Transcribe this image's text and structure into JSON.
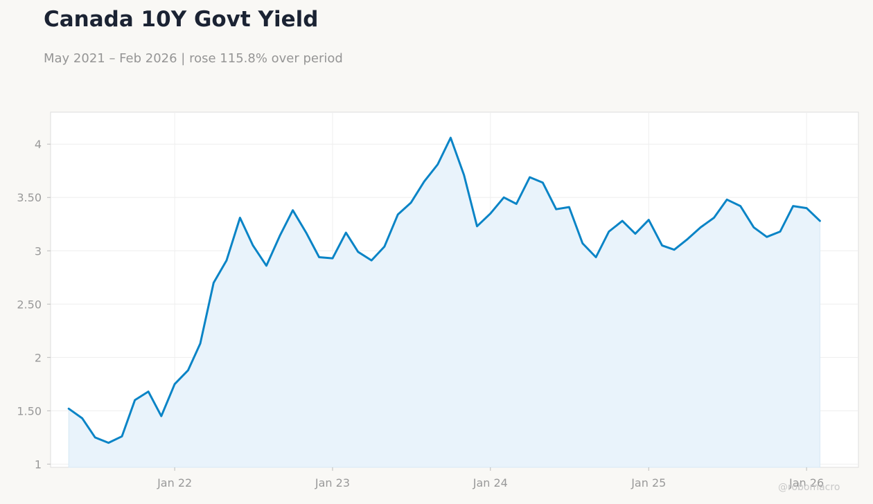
{
  "header": {
    "title": "Canada 10Y Govt Yield",
    "subtitle": "May 2021 – Feb 2026 | rose 115.8% over period"
  },
  "watermark": "@robomacro",
  "colors": {
    "background": "#f9f8f5",
    "plot_background": "#ffffff",
    "line": "#0a84c6",
    "fill": "#e9f3fb",
    "grid": "#eeeeee",
    "tick_label": "#999999"
  },
  "chart_data": {
    "type": "area",
    "title": "Canada 10Y Govt Yield",
    "subtitle": "May 2021 – Feb 2026 | rose 115.8% over period",
    "xlabel": "",
    "ylabel": "",
    "grid": true,
    "legend": "none",
    "x_range": [
      "2021-03-20",
      "2026-05-01"
    ],
    "ylim": [
      0.97,
      4.3
    ],
    "y_ticks": [
      1,
      1.5,
      2,
      2.5,
      3,
      3.5,
      4
    ],
    "y_tick_labels": [
      "1",
      "1.50",
      "2",
      "2.50",
      "3",
      "3.50",
      "4"
    ],
    "x_ticks": [
      "2022-01-01",
      "2023-01-01",
      "2024-01-01",
      "2025-01-01",
      "2026-01-01"
    ],
    "x_tick_labels": [
      "Jan 22",
      "Jan 23",
      "Jan 24",
      "Jan 25",
      "Jan 26"
    ],
    "series": [
      {
        "x": [
          "2021-05-01",
          "2021-06-01",
          "2021-07-01",
          "2021-08-01",
          "2021-09-01",
          "2021-10-01",
          "2021-11-01",
          "2021-12-01",
          "2022-01-01",
          "2022-02-01",
          "2022-03-01",
          "2022-04-01",
          "2022-05-01",
          "2022-06-01",
          "2022-07-01",
          "2022-08-01",
          "2022-09-01",
          "2022-10-01",
          "2022-11-01",
          "2022-12-01",
          "2023-01-01",
          "2023-02-01",
          "2023-03-01",
          "2023-04-01",
          "2023-05-01",
          "2023-06-01",
          "2023-07-01",
          "2023-08-01",
          "2023-09-01",
          "2023-10-01",
          "2023-11-01",
          "2023-12-01",
          "2024-01-01",
          "2024-02-01",
          "2024-03-01",
          "2024-04-01",
          "2024-05-01",
          "2024-06-01",
          "2024-07-01",
          "2024-08-01",
          "2024-09-01",
          "2024-10-01",
          "2024-11-01",
          "2024-12-01",
          "2025-01-01",
          "2025-02-01",
          "2025-03-01",
          "2025-04-01",
          "2025-05-01",
          "2025-06-01",
          "2025-07-01",
          "2025-08-01",
          "2025-09-01",
          "2025-10-01",
          "2025-11-01",
          "2025-12-01",
          "2026-01-01",
          "2026-02-01"
        ],
        "values": [
          1.52,
          1.43,
          1.25,
          1.2,
          1.26,
          1.6,
          1.68,
          1.45,
          1.75,
          1.88,
          2.13,
          2.7,
          2.91,
          3.31,
          3.05,
          2.86,
          3.14,
          3.38,
          3.17,
          2.94,
          2.93,
          3.17,
          2.99,
          2.91,
          3.04,
          3.34,
          3.45,
          3.65,
          3.81,
          4.06,
          3.71,
          3.23,
          3.35,
          3.5,
          3.44,
          3.69,
          3.64,
          3.39,
          3.41,
          3.07,
          2.94,
          3.18,
          3.28,
          3.16,
          3.29,
          3.05,
          3.01,
          3.11,
          3.22,
          3.31,
          3.48,
          3.42,
          3.22,
          3.13,
          3.18,
          3.42,
          3.4,
          3.28
        ]
      }
    ]
  }
}
